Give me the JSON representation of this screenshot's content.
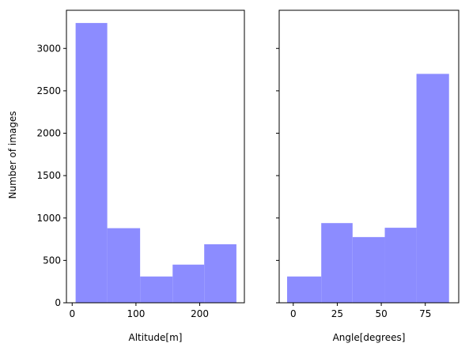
{
  "chart_data": [
    {
      "type": "bar",
      "xlabel": "Altitude[m]",
      "ylabel": "Number of images",
      "bin_edges": [
        5.4,
        55.0,
        106.5,
        157.5,
        207.0,
        257.5
      ],
      "values": [
        3300,
        880,
        310,
        450,
        690
      ],
      "xlim": [
        -9,
        270
      ],
      "ylim": [
        0,
        3450
      ],
      "xticks": [
        0,
        100,
        200
      ],
      "xtick_labels": [
        "0",
        "100",
        "200"
      ],
      "yticks": [
        0,
        500,
        1000,
        1500,
        2000,
        2500,
        3000
      ],
      "ytick_labels": [
        "0",
        "500",
        "1000",
        "1500",
        "2000",
        "2500",
        "3000"
      ],
      "color": "#8c8cff",
      "grid": false
    },
    {
      "type": "bar",
      "xlabel": "Angle[degrees]",
      "ylabel": "",
      "bin_edges": [
        -3.5,
        15.9,
        33.7,
        52.0,
        70.0,
        88.5
      ],
      "values": [
        310,
        940,
        775,
        885,
        2700
      ],
      "xlim": [
        -8,
        94
      ],
      "ylim": [
        0,
        3450
      ],
      "xticks": [
        0,
        25,
        50,
        75
      ],
      "xtick_labels": [
        "0",
        "25",
        "50",
        "75"
      ],
      "yticks": [
        0,
        500,
        1000,
        1500,
        2000,
        2500,
        3000
      ],
      "ytick_labels": [],
      "color": "#8c8cff",
      "grid": false
    }
  ]
}
